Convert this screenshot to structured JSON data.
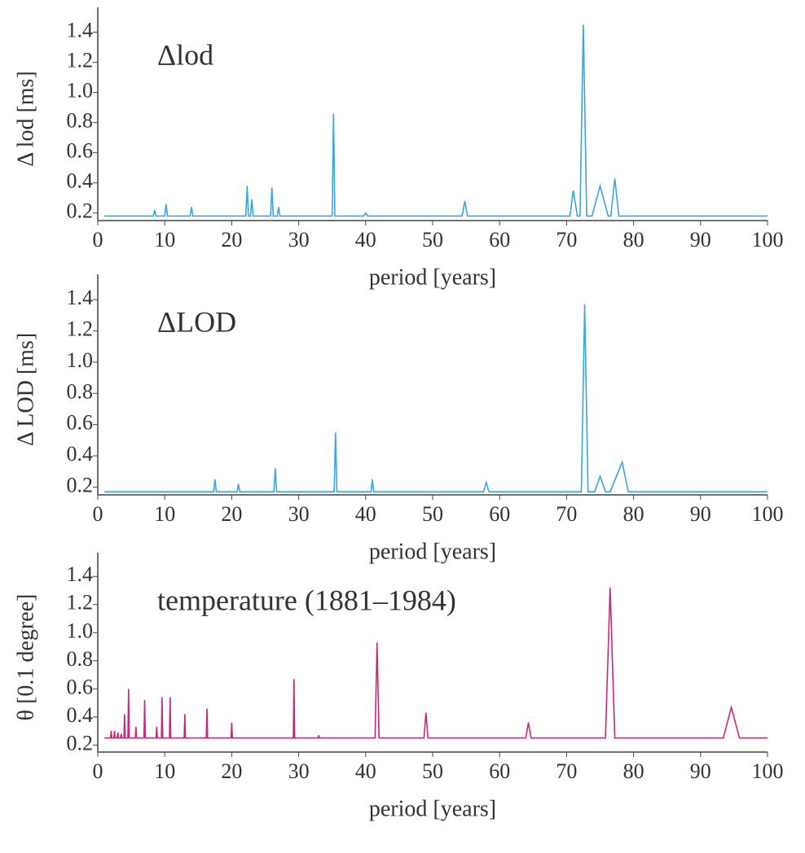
{
  "chart_data": [
    {
      "type": "line",
      "annotation": "Δlod",
      "ylabel": "Δ lod [ms]",
      "xlabel": "period [years]",
      "xlim": [
        0,
        100
      ],
      "ylim": [
        0.15,
        1.5
      ],
      "xticks": [
        0,
        10,
        20,
        30,
        40,
        50,
        60,
        70,
        80,
        90,
        100
      ],
      "yticks": [
        0.2,
        0.4,
        0.6,
        0.8,
        {
          "value": 1,
          "label": "1.0"
        },
        1.2,
        1.4
      ],
      "series": [
        {
          "color": "#3aa6e0",
          "x": [
            1,
            8.3,
            8.5,
            8.7,
            10,
            10.2,
            10.4,
            13.8,
            14,
            14.2,
            22.1,
            22.3,
            22.5,
            22.8,
            23,
            23.2,
            25.8,
            26,
            26.2,
            26.8,
            27,
            27.2,
            35,
            35.2,
            35.4,
            39.7,
            40,
            40.3,
            54.4,
            54.8,
            55.2,
            70.5,
            71,
            71.6,
            72,
            72.5,
            73,
            73.8,
            75,
            76.2,
            76.6,
            77.2,
            77.8,
            100
          ],
          "values": [
            0.18,
            0.18,
            0.22,
            0.18,
            0.18,
            0.26,
            0.18,
            0.18,
            0.24,
            0.18,
            0.18,
            0.38,
            0.18,
            0.18,
            0.29,
            0.18,
            0.18,
            0.37,
            0.18,
            0.18,
            0.24,
            0.18,
            0.18,
            0.86,
            0.18,
            0.18,
            0.2,
            0.18,
            0.18,
            0.28,
            0.18,
            0.18,
            0.35,
            0.18,
            0.18,
            1.45,
            0.18,
            0.18,
            0.38,
            0.18,
            0.18,
            0.43,
            0.18,
            0.18
          ]
        }
      ]
    },
    {
      "type": "line",
      "annotation": "ΔLOD",
      "ylabel": "Δ LOD [ms]",
      "xlabel": "period [years]",
      "xlim": [
        0,
        100
      ],
      "ylim": [
        0.15,
        1.5
      ],
      "xticks": [
        0,
        10,
        20,
        30,
        40,
        50,
        60,
        70,
        80,
        90,
        100
      ],
      "yticks": [
        0.2,
        0.4,
        0.6,
        0.8,
        {
          "value": 1,
          "label": "1.0"
        },
        1.2,
        1.4
      ],
      "series": [
        {
          "color": "#3aa6e0",
          "x": [
            1,
            17.3,
            17.5,
            17.7,
            20.8,
            21,
            21.2,
            26.3,
            26.5,
            26.7,
            35.3,
            35.5,
            35.7,
            40.8,
            41,
            41.2,
            57.6,
            58,
            58.4,
            72.2,
            72.7,
            73.2,
            74.2,
            75,
            75.8,
            76.5,
            78.3,
            79.2,
            100
          ],
          "values": [
            0.17,
            0.17,
            0.25,
            0.17,
            0.17,
            0.22,
            0.17,
            0.17,
            0.32,
            0.17,
            0.17,
            0.55,
            0.17,
            0.17,
            0.25,
            0.17,
            0.17,
            0.23,
            0.17,
            0.17,
            1.37,
            0.17,
            0.17,
            0.27,
            0.17,
            0.17,
            0.36,
            0.17,
            0.17
          ]
        }
      ]
    },
    {
      "type": "line",
      "annotation": "temperature (1881–1984)",
      "ylabel": "θ [0.1 degree]",
      "xlabel": "period [years]",
      "xlim": [
        0,
        100
      ],
      "ylim": [
        0.15,
        1.5
      ],
      "xticks": [
        0,
        10,
        20,
        30,
        40,
        50,
        60,
        70,
        80,
        90,
        100
      ],
      "yticks": [
        0.2,
        0.4,
        0.6,
        0.8,
        {
          "value": 1,
          "label": "1.0"
        },
        1.2,
        1.4
      ],
      "series": [
        {
          "color": "#c8287a",
          "x": [
            1,
            1.9,
            2,
            2.1,
            2.4,
            2.5,
            2.6,
            2.9,
            3,
            3.1,
            3.4,
            3.5,
            3.6,
            3.9,
            4,
            4.1,
            4.5,
            4.6,
            4.7,
            5.6,
            5.7,
            5.8,
            6.9,
            7,
            7.1,
            8.7,
            8.8,
            8.9,
            9.5,
            9.6,
            9.7,
            10.7,
            10.8,
            10.9,
            12.9,
            13,
            13.1,
            16.2,
            16.3,
            16.4,
            19.9,
            20,
            20.1,
            29.2,
            29.3,
            29.4,
            32.9,
            33,
            33.1,
            41.4,
            41.7,
            42,
            48.7,
            49,
            49.3,
            63.9,
            64.3,
            64.7,
            75.8,
            76.5,
            77.2,
            93.4,
            94.6,
            95.8,
            100
          ],
          "values": [
            0.25,
            0.25,
            0.3,
            0.25,
            0.25,
            0.3,
            0.25,
            0.25,
            0.29,
            0.25,
            0.25,
            0.28,
            0.25,
            0.25,
            0.42,
            0.25,
            0.25,
            0.6,
            0.25,
            0.25,
            0.33,
            0.25,
            0.25,
            0.52,
            0.25,
            0.25,
            0.33,
            0.25,
            0.25,
            0.54,
            0.25,
            0.25,
            0.54,
            0.25,
            0.25,
            0.42,
            0.25,
            0.25,
            0.46,
            0.25,
            0.25,
            0.36,
            0.25,
            0.25,
            0.67,
            0.25,
            0.25,
            0.27,
            0.25,
            0.25,
            0.93,
            0.25,
            0.25,
            0.43,
            0.25,
            0.25,
            0.36,
            0.25,
            0.25,
            1.32,
            0.25,
            0.25,
            0.47,
            0.25,
            0.25
          ]
        }
      ]
    }
  ]
}
